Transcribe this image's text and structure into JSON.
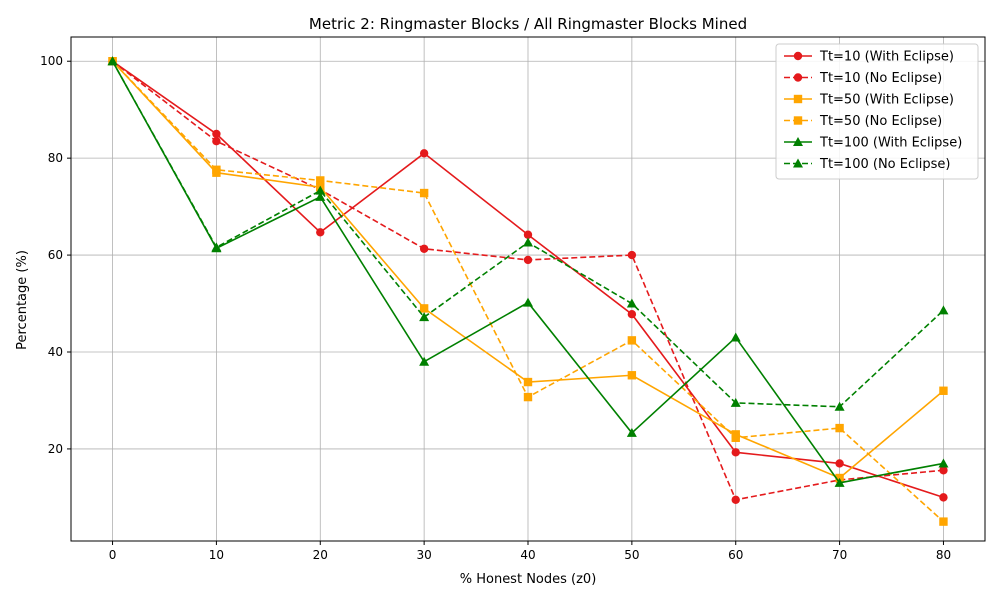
{
  "chart_data": {
    "type": "line",
    "title": "Metric 2: Ringmaster Blocks / All Ringmaster Blocks Mined",
    "xlabel": "% Honest Nodes (z0)",
    "ylabel": "Percentage (%)",
    "x": [
      0,
      10,
      20,
      30,
      40,
      50,
      60,
      70,
      80
    ],
    "x_ticks": [
      0,
      10,
      20,
      30,
      40,
      50,
      60,
      70,
      80
    ],
    "y_ticks": [
      20,
      40,
      60,
      80,
      100
    ],
    "xlim": [
      -4,
      84
    ],
    "ylim": [
      1,
      105
    ],
    "grid": true,
    "legend_position": "top-right",
    "series": [
      {
        "name": "Tt=10 (With Eclipse)",
        "color": "#e41a1c",
        "dash": "solid",
        "marker": "circle",
        "values": [
          100,
          85,
          64.7,
          81,
          64.2,
          47.8,
          19.3,
          17,
          10
        ]
      },
      {
        "name": "Tt=10 (No Eclipse)",
        "color": "#e41a1c",
        "dash": "dashed",
        "marker": "circle",
        "values": [
          100,
          83.5,
          73.5,
          61.3,
          59,
          60,
          9.5,
          13.6,
          15.6
        ]
      },
      {
        "name": "Tt=50 (With Eclipse)",
        "color": "#ffa500",
        "dash": "solid",
        "marker": "square",
        "values": [
          100,
          77,
          74,
          49,
          33.8,
          35.2,
          23,
          14,
          32
        ]
      },
      {
        "name": "Tt=50 (No Eclipse)",
        "color": "#ffa500",
        "dash": "dashed",
        "marker": "square",
        "values": [
          100,
          77.6,
          75.4,
          72.8,
          30.7,
          42.4,
          22.3,
          24.3,
          5
        ]
      },
      {
        "name": "Tt=100 (With Eclipse)",
        "color": "#008000",
        "dash": "solid",
        "marker": "triangle",
        "values": [
          100,
          61.4,
          72,
          38,
          50.2,
          23.3,
          43,
          13,
          17
        ]
      },
      {
        "name": "Tt=100 (No Eclipse)",
        "color": "#008000",
        "dash": "dashed",
        "marker": "triangle",
        "values": [
          100,
          61.6,
          73.3,
          47.2,
          62.6,
          50,
          29.5,
          28.7,
          48.6
        ]
      }
    ]
  }
}
